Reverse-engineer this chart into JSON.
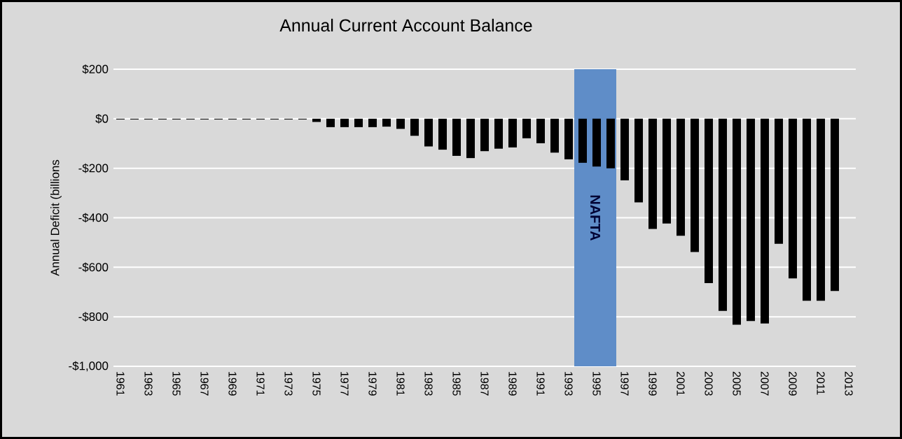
{
  "chart_data": {
    "type": "bar",
    "title": "Annual Current Account Balance",
    "ylabel": "Annual Deficit (billions",
    "x": [
      1961,
      1962,
      1963,
      1964,
      1965,
      1966,
      1967,
      1968,
      1969,
      1970,
      1971,
      1972,
      1973,
      1974,
      1975,
      1976,
      1977,
      1978,
      1979,
      1980,
      1981,
      1982,
      1983,
      1984,
      1985,
      1986,
      1987,
      1988,
      1989,
      1990,
      1991,
      1992,
      1993,
      1994,
      1995,
      1996,
      1997,
      1998,
      1999,
      2000,
      2001,
      2002,
      2003,
      2004,
      2005,
      2006,
      2007,
      2008,
      2009,
      2010,
      2011,
      2012
    ],
    "series": [
      {
        "color": "#000000",
        "values": [
          -3,
          -3,
          -3,
          -3,
          -3,
          -3,
          -3,
          -3,
          -3,
          -3,
          -3,
          -3,
          -3,
          -3,
          -13,
          -34,
          -34,
          -34,
          -34,
          -32,
          -41,
          -69,
          -112,
          -125,
          -150,
          -159,
          -131,
          -121,
          -116,
          -79,
          -99,
          -137,
          -164,
          -178,
          -193,
          -200,
          -249,
          -338,
          -445,
          -423,
          -473,
          -538,
          -664,
          -776,
          -832,
          -817,
          -827,
          -505,
          -645,
          -735,
          -735,
          -696
        ]
      }
    ],
    "xlim": [
      1960.5,
      2013.5
    ],
    "xticks": [
      1961,
      1963,
      1965,
      1967,
      1969,
      1971,
      1973,
      1975,
      1977,
      1979,
      1981,
      1983,
      1985,
      1987,
      1989,
      1991,
      1993,
      1995,
      1997,
      1999,
      2001,
      2003,
      2005,
      2007,
      2009,
      2011,
      2013
    ],
    "ylim": [
      -1000,
      200
    ],
    "yticks": [
      {
        "value": 200,
        "label": "$200"
      },
      {
        "value": 0,
        "label": "$0"
      },
      {
        "value": -200,
        "label": "-$200"
      },
      {
        "value": -400,
        "label": "-$400"
      },
      {
        "value": -600,
        "label": "-$600"
      },
      {
        "value": -800,
        "label": "-$800"
      },
      {
        "value": -1000,
        "label": "-$1,000"
      }
    ],
    "bands": [
      {
        "axis": "x",
        "from": 1993.4,
        "to": 1996.4,
        "label": "NAFTA",
        "color": "#5f8dc8"
      }
    ],
    "grid": "y"
  }
}
